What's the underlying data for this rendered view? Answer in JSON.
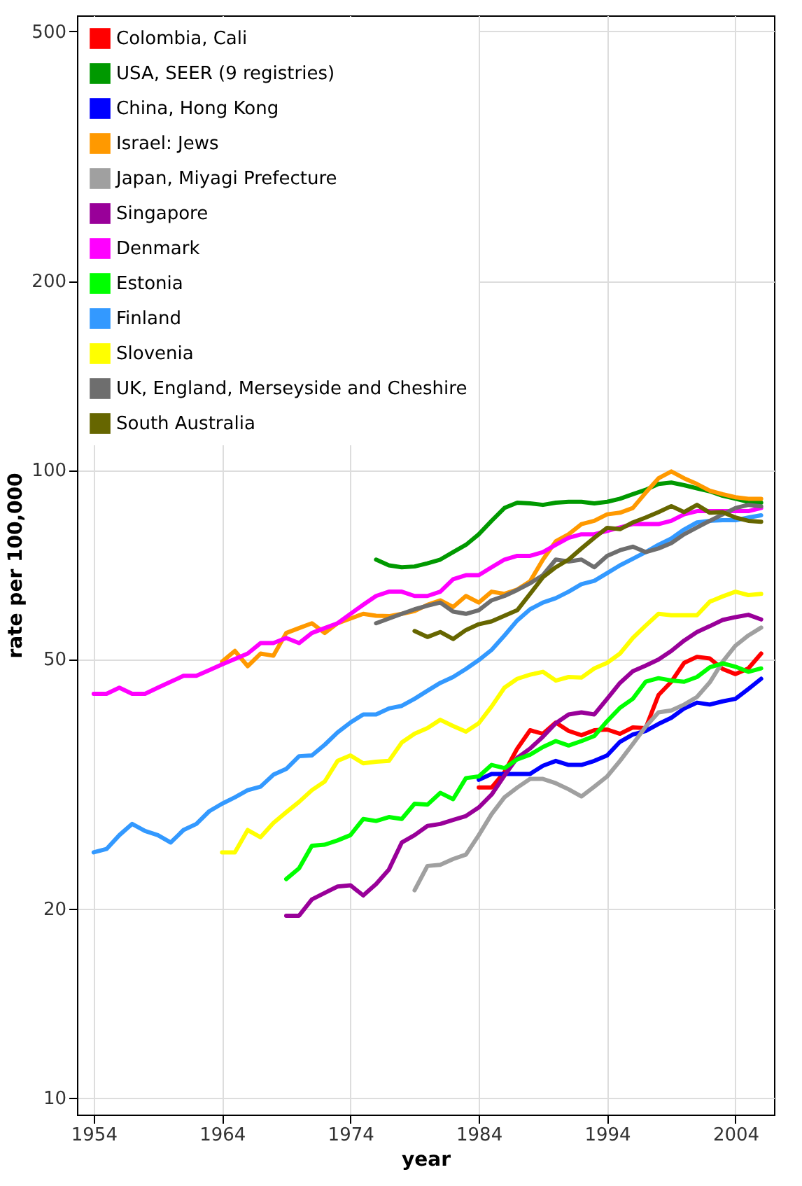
{
  "chart_data": {
    "type": "line",
    "xlabel": "year",
    "ylabel": "rate per 100,000",
    "log": "y",
    "grid": true,
    "legend": "top left",
    "xlim": [
      1952.7,
      2007
    ],
    "ylim": [
      9.4,
      530
    ],
    "xticks": [
      1954,
      1964,
      1974,
      1984,
      1994,
      2004
    ],
    "yticks": [
      10,
      20,
      50,
      100,
      200,
      500
    ],
    "x": [
      1954,
      1955,
      1956,
      1957,
      1958,
      1959,
      1960,
      1961,
      1962,
      1963,
      1964,
      1965,
      1966,
      1967,
      1968,
      1969,
      1970,
      1971,
      1972,
      1973,
      1974,
      1975,
      1976,
      1977,
      1978,
      1979,
      1980,
      1981,
      1982,
      1983,
      1984,
      1985,
      1986,
      1987,
      1988,
      1989,
      1990,
      1991,
      1992,
      1993,
      1994,
      1995,
      1996,
      1997,
      1998,
      1999,
      2000,
      2001,
      2002,
      2003,
      2004,
      2005,
      2006
    ],
    "series": [
      {
        "name": "Colombia, Cali",
        "color": "#ff0000",
        "values": [
          null,
          null,
          null,
          null,
          null,
          null,
          null,
          null,
          null,
          null,
          null,
          null,
          null,
          null,
          null,
          null,
          null,
          null,
          null,
          null,
          null,
          null,
          null,
          null,
          null,
          null,
          null,
          null,
          null,
          null,
          31.2,
          31.2,
          33,
          36,
          38.5,
          38,
          39.6,
          38.4,
          37.8,
          38.5,
          38.6,
          38,
          38.9,
          38.8,
          43.8,
          46,
          49.3,
          50.4,
          50.1,
          48.2,
          47.3,
          48.3,
          51
        ]
      },
      {
        "name": "USA, SEER (9 registries)",
        "color": "#009900",
        "values": [
          null,
          null,
          null,
          null,
          null,
          null,
          null,
          null,
          null,
          null,
          null,
          null,
          null,
          null,
          null,
          null,
          null,
          null,
          null,
          null,
          null,
          null,
          72,
          70.5,
          70,
          70.2,
          71,
          72,
          74,
          76,
          79,
          83,
          87,
          88.7,
          88.5,
          88,
          88.7,
          89,
          89,
          88.5,
          89,
          90,
          91.5,
          93,
          95,
          95.5,
          94.6,
          93.5,
          92.5,
          91,
          90,
          89,
          88.7
        ]
      },
      {
        "name": "China, Hong Kong",
        "color": "#0000ff",
        "values": [
          null,
          null,
          null,
          null,
          null,
          null,
          null,
          null,
          null,
          null,
          null,
          null,
          null,
          null,
          null,
          null,
          null,
          null,
          null,
          null,
          null,
          null,
          null,
          null,
          null,
          null,
          null,
          null,
          null,
          null,
          32.1,
          32.8,
          32.8,
          32.8,
          32.8,
          33.8,
          34.4,
          33.9,
          33.9,
          34.4,
          35.1,
          36.9,
          37.9,
          38.4,
          39.4,
          40.3,
          41.7,
          42.6,
          42.3,
          42.8,
          43.2,
          44.8,
          46.5
        ]
      },
      {
        "name": "Israel: Jews",
        "color": "#ff9900",
        "values": [
          null,
          null,
          null,
          null,
          null,
          null,
          null,
          null,
          null,
          null,
          49.5,
          51.5,
          48.7,
          51,
          50.6,
          55,
          56,
          57,
          55,
          57,
          58,
          59,
          58.6,
          58.5,
          59,
          59.6,
          61,
          62,
          60.5,
          63,
          61.5,
          64,
          63.5,
          64.5,
          66.5,
          72,
          77,
          79,
          82,
          83,
          85,
          85.5,
          87,
          92,
          97,
          99.5,
          97,
          95,
          92.7,
          91.5,
          90.5,
          90,
          90
        ]
      },
      {
        "name": "Japan, Miyagi Prefecture",
        "color": "#a0a0a0",
        "values": [
          null,
          null,
          null,
          null,
          null,
          null,
          null,
          null,
          null,
          null,
          null,
          null,
          null,
          null,
          null,
          null,
          null,
          null,
          null,
          null,
          null,
          null,
          null,
          null,
          null,
          21.4,
          23.4,
          23.5,
          24,
          24.4,
          26.2,
          28.3,
          30.1,
          31.2,
          32.2,
          32.2,
          31.7,
          31,
          30.2,
          31.3,
          32.5,
          34.4,
          36.6,
          39,
          41.1,
          41.4,
          42.3,
          43.5,
          45.9,
          49.5,
          52.5,
          54.5,
          56.1
        ]
      },
      {
        "name": "Singapore",
        "color": "#990099",
        "values": [
          null,
          null,
          null,
          null,
          null,
          null,
          null,
          null,
          null,
          null,
          null,
          null,
          null,
          null,
          null,
          19.5,
          19.5,
          20.7,
          21.2,
          21.7,
          21.8,
          21,
          21.9,
          23.1,
          25.5,
          26.2,
          27.1,
          27.3,
          27.7,
          28.1,
          29,
          30.4,
          32.6,
          34.8,
          36,
          37.6,
          39.5,
          40.8,
          41.1,
          40.8,
          43.2,
          45.8,
          47.8,
          48.8,
          49.9,
          51.5,
          53.5,
          55.2,
          56.4,
          57.7,
          58.3,
          58.8,
          57.8
        ]
      },
      {
        "name": "Denmark",
        "color": "#ff00ff",
        "values": [
          44,
          44,
          45,
          44,
          44,
          45,
          46,
          47,
          47,
          48,
          49,
          50,
          51,
          53,
          53,
          54,
          53,
          55,
          56,
          57,
          59,
          61,
          63,
          64,
          64,
          63,
          63,
          64,
          67,
          68,
          68,
          70,
          72,
          73,
          73,
          74,
          76,
          78,
          79,
          79,
          80,
          81,
          82,
          82,
          82,
          83,
          85,
          86,
          86,
          86,
          86,
          86,
          87
        ]
      },
      {
        "name": "Estonia",
        "color": "#00ff00",
        "values": [
          null,
          null,
          null,
          null,
          null,
          null,
          null,
          null,
          null,
          null,
          null,
          null,
          null,
          null,
          null,
          22.3,
          23.2,
          25.2,
          25.3,
          25.7,
          26.2,
          27.8,
          27.6,
          28,
          27.8,
          29.4,
          29.3,
          30.6,
          29.9,
          32.3,
          32.5,
          33.9,
          33.5,
          34.6,
          35.2,
          36.2,
          37,
          36.4,
          37,
          37.7,
          39.8,
          41.8,
          43.2,
          46,
          46.6,
          46.2,
          46,
          46.8,
          48.5,
          49.2,
          48.6,
          47.7,
          48.3
        ]
      },
      {
        "name": "Finland",
        "color": "#3399ff",
        "values": [
          24.6,
          24.9,
          26.2,
          27.3,
          26.6,
          26.2,
          25.5,
          26.7,
          27.3,
          28.6,
          29.4,
          30.1,
          30.9,
          31.3,
          32.7,
          33.4,
          35,
          35.1,
          36.5,
          38.2,
          39.6,
          40.8,
          40.8,
          41.7,
          42.1,
          43.2,
          44.5,
          45.8,
          46.8,
          48.2,
          49.8,
          51.7,
          54.5,
          57.6,
          60,
          61.5,
          62.5,
          64,
          65.8,
          66.6,
          68.5,
          70.5,
          72.2,
          74,
          76,
          77.8,
          80.4,
          82.5,
          83,
          83.2,
          83.2,
          84,
          84.7
        ]
      },
      {
        "name": "Slovenia",
        "color": "#ffff00",
        "values": [
          null,
          null,
          null,
          null,
          null,
          null,
          null,
          null,
          null,
          null,
          24.6,
          24.6,
          26.7,
          26,
          27.4,
          28.5,
          29.6,
          30.9,
          31.9,
          34.4,
          35.1,
          34.1,
          34.3,
          34.4,
          36.8,
          38,
          38.8,
          40,
          39.1,
          38.3,
          39.5,
          42,
          45,
          46.5,
          47.2,
          47.7,
          46.2,
          46.8,
          46.7,
          48.3,
          49.3,
          51,
          54,
          56.5,
          59,
          58.7,
          58.7,
          58.7,
          61.7,
          62.9,
          64,
          63.2,
          63.5
        ]
      },
      {
        "name": "UK, England, Merseyside and Cheshire",
        "color": "#6e6e6e",
        "values": [
          null,
          null,
          null,
          null,
          null,
          null,
          null,
          null,
          null,
          null,
          null,
          null,
          null,
          null,
          null,
          null,
          null,
          null,
          null,
          null,
          null,
          null,
          57,
          58,
          59,
          60,
          60.8,
          61.5,
          59.5,
          59,
          59.8,
          62,
          63,
          64.4,
          66,
          68,
          72,
          71.5,
          72,
          70,
          73,
          74.5,
          75.5,
          74,
          75,
          76.5,
          79,
          81,
          83,
          85,
          87,
          88,
          87.5
        ]
      },
      {
        "name": "South Australia",
        "color": "#666600",
        "values": [
          null,
          null,
          null,
          null,
          null,
          null,
          null,
          null,
          null,
          null,
          null,
          null,
          null,
          null,
          null,
          null,
          null,
          null,
          null,
          null,
          null,
          null,
          null,
          null,
          null,
          55.4,
          54.2,
          55.2,
          53.8,
          55.6,
          56.8,
          57.4,
          58.6,
          59.8,
          63.5,
          67.5,
          70,
          72,
          75,
          78,
          80.9,
          80.5,
          82.5,
          84,
          85.7,
          87.6,
          85.7,
          88,
          85.5,
          85.7,
          84,
          83,
          82.7
        ]
      }
    ]
  }
}
